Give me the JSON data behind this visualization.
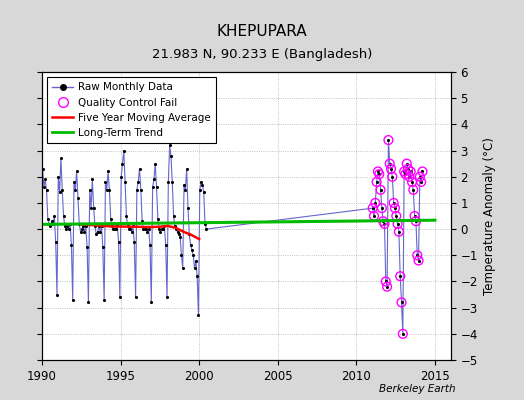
{
  "title": "KHEPUPARA",
  "subtitle": "21.983 N, 90.233 E (Bangladesh)",
  "ylabel": "Temperature Anomaly (°C)",
  "credit": "Berkeley Earth",
  "xlim": [
    1990,
    2016
  ],
  "ylim": [
    -5,
    6
  ],
  "yticks": [
    -5,
    -4,
    -3,
    -2,
    -1,
    0,
    1,
    2,
    3,
    4,
    5,
    6
  ],
  "xticks": [
    1990,
    1995,
    2000,
    2005,
    2010,
    2015
  ],
  "bg_color": "#d8d8d8",
  "plot_bg_color": "#ffffff",
  "raw_color": "#6666cc",
  "dot_color": "#000000",
  "qc_color": "#ff00ff",
  "ma_color": "#ff0000",
  "trend_color": "#00bb00",
  "raw_monthly": [
    [
      1990.042,
      2.3
    ],
    [
      1990.125,
      1.6
    ],
    [
      1990.208,
      1.9
    ],
    [
      1990.292,
      1.5
    ],
    [
      1990.375,
      0.4
    ],
    [
      1990.458,
      0.2
    ],
    [
      1990.542,
      0.1
    ],
    [
      1990.625,
      0.3
    ],
    [
      1990.708,
      0.2
    ],
    [
      1990.792,
      0.5
    ],
    [
      1990.875,
      -0.5
    ],
    [
      1990.958,
      -2.5
    ],
    [
      1991.042,
      2.0
    ],
    [
      1991.125,
      1.4
    ],
    [
      1991.208,
      2.7
    ],
    [
      1991.292,
      1.5
    ],
    [
      1991.375,
      0.5
    ],
    [
      1991.458,
      0.1
    ],
    [
      1991.542,
      0.0
    ],
    [
      1991.625,
      0.1
    ],
    [
      1991.708,
      0.0
    ],
    [
      1991.792,
      0.2
    ],
    [
      1991.875,
      -0.6
    ],
    [
      1991.958,
      -2.7
    ],
    [
      1992.042,
      1.8
    ],
    [
      1992.125,
      1.5
    ],
    [
      1992.208,
      2.2
    ],
    [
      1992.292,
      1.2
    ],
    [
      1992.375,
      0.2
    ],
    [
      1992.458,
      -0.1
    ],
    [
      1992.542,
      0.0
    ],
    [
      1992.625,
      0.1
    ],
    [
      1992.708,
      -0.1
    ],
    [
      1992.792,
      0.1
    ],
    [
      1992.875,
      -0.7
    ],
    [
      1992.958,
      -2.8
    ],
    [
      1993.042,
      1.5
    ],
    [
      1993.125,
      0.8
    ],
    [
      1993.208,
      1.9
    ],
    [
      1993.292,
      0.8
    ],
    [
      1993.375,
      0.1
    ],
    [
      1993.458,
      -0.2
    ],
    [
      1993.542,
      -0.1
    ],
    [
      1993.625,
      0.1
    ],
    [
      1993.708,
      -0.1
    ],
    [
      1993.792,
      0.1
    ],
    [
      1993.875,
      -0.7
    ],
    [
      1993.958,
      -2.7
    ],
    [
      1994.042,
      1.8
    ],
    [
      1994.125,
      1.5
    ],
    [
      1994.208,
      2.2
    ],
    [
      1994.292,
      1.5
    ],
    [
      1994.375,
      0.4
    ],
    [
      1994.458,
      0.1
    ],
    [
      1994.542,
      0.0
    ],
    [
      1994.625,
      0.0
    ],
    [
      1994.708,
      0.0
    ],
    [
      1994.792,
      0.2
    ],
    [
      1994.875,
      -0.5
    ],
    [
      1994.958,
      -2.6
    ],
    [
      1995.042,
      2.0
    ],
    [
      1995.125,
      2.5
    ],
    [
      1995.208,
      3.0
    ],
    [
      1995.292,
      1.8
    ],
    [
      1995.375,
      0.5
    ],
    [
      1995.458,
      0.1
    ],
    [
      1995.542,
      0.0
    ],
    [
      1995.625,
      0.0
    ],
    [
      1995.708,
      -0.1
    ],
    [
      1995.792,
      0.1
    ],
    [
      1995.875,
      -0.5
    ],
    [
      1995.958,
      -2.6
    ],
    [
      1996.042,
      1.5
    ],
    [
      1996.125,
      1.8
    ],
    [
      1996.208,
      2.3
    ],
    [
      1996.292,
      1.5
    ],
    [
      1996.375,
      0.3
    ],
    [
      1996.458,
      0.0
    ],
    [
      1996.542,
      0.0
    ],
    [
      1996.625,
      0.0
    ],
    [
      1996.708,
      -0.1
    ],
    [
      1996.792,
      0.0
    ],
    [
      1996.875,
      -0.6
    ],
    [
      1996.958,
      -2.8
    ],
    [
      1997.042,
      1.6
    ],
    [
      1997.125,
      1.9
    ],
    [
      1997.208,
      2.5
    ],
    [
      1997.292,
      1.6
    ],
    [
      1997.375,
      0.4
    ],
    [
      1997.458,
      0.0
    ],
    [
      1997.542,
      -0.1
    ],
    [
      1997.625,
      0.0
    ],
    [
      1997.708,
      0.0
    ],
    [
      1997.792,
      0.1
    ],
    [
      1997.875,
      -0.6
    ],
    [
      1997.958,
      -2.6
    ],
    [
      1998.042,
      1.8
    ],
    [
      1998.125,
      3.2
    ],
    [
      1998.208,
      2.8
    ],
    [
      1998.292,
      1.8
    ],
    [
      1998.375,
      0.5
    ],
    [
      1998.458,
      0.1
    ],
    [
      1998.542,
      0.0
    ],
    [
      1998.625,
      -0.1
    ],
    [
      1998.708,
      -0.2
    ],
    [
      1998.792,
      -0.3
    ],
    [
      1998.875,
      -1.0
    ],
    [
      1998.958,
      -1.5
    ],
    [
      1999.042,
      1.7
    ],
    [
      1999.125,
      1.5
    ],
    [
      1999.208,
      2.3
    ],
    [
      1999.292,
      0.8
    ],
    [
      1999.375,
      -0.2
    ],
    [
      1999.458,
      -0.6
    ],
    [
      1999.542,
      -0.8
    ],
    [
      1999.625,
      -1.0
    ],
    [
      1999.708,
      -1.5
    ],
    [
      1999.792,
      -1.2
    ],
    [
      1999.875,
      -1.8
    ],
    [
      1999.958,
      -3.3
    ],
    [
      2000.042,
      1.5
    ],
    [
      2000.125,
      1.8
    ],
    [
      2000.208,
      1.7
    ],
    [
      2000.292,
      1.4
    ],
    [
      2000.375,
      0.2
    ],
    [
      2000.458,
      0.0
    ],
    [
      2011.042,
      0.8
    ],
    [
      2011.125,
      0.5
    ],
    [
      2011.208,
      1.0
    ],
    [
      2011.292,
      1.8
    ],
    [
      2011.375,
      2.2
    ],
    [
      2011.458,
      2.1
    ],
    [
      2011.542,
      1.5
    ],
    [
      2011.625,
      0.8
    ],
    [
      2011.708,
      0.3
    ],
    [
      2011.792,
      0.2
    ],
    [
      2011.875,
      -2.0
    ],
    [
      2011.958,
      -2.2
    ],
    [
      2012.042,
      3.4
    ],
    [
      2012.125,
      2.5
    ],
    [
      2012.208,
      2.3
    ],
    [
      2012.292,
      2.0
    ],
    [
      2012.375,
      1.0
    ],
    [
      2012.458,
      0.8
    ],
    [
      2012.542,
      0.5
    ],
    [
      2012.625,
      0.2
    ],
    [
      2012.708,
      -0.1
    ],
    [
      2012.792,
      -1.8
    ],
    [
      2012.875,
      -2.8
    ],
    [
      2012.958,
      -4.0
    ],
    [
      2013.042,
      2.2
    ],
    [
      2013.125,
      2.1
    ],
    [
      2013.208,
      2.5
    ],
    [
      2013.292,
      2.3
    ],
    [
      2013.375,
      2.0
    ],
    [
      2013.458,
      2.2
    ],
    [
      2013.542,
      1.8
    ],
    [
      2013.625,
      1.5
    ],
    [
      2013.708,
      0.5
    ],
    [
      2013.792,
      0.3
    ],
    [
      2013.875,
      -1.0
    ],
    [
      2013.958,
      -1.2
    ],
    [
      2014.042,
      2.0
    ],
    [
      2014.125,
      1.8
    ],
    [
      2014.208,
      2.2
    ]
  ],
  "qc_fail": [
    [
      2011.042,
      0.8
    ],
    [
      2011.125,
      0.5
    ],
    [
      2011.208,
      1.0
    ],
    [
      2011.292,
      1.8
    ],
    [
      2011.375,
      2.2
    ],
    [
      2011.458,
      2.1
    ],
    [
      2011.542,
      1.5
    ],
    [
      2011.625,
      0.8
    ],
    [
      2011.708,
      0.3
    ],
    [
      2011.792,
      0.2
    ],
    [
      2011.875,
      -2.0
    ],
    [
      2011.958,
      -2.2
    ],
    [
      2012.042,
      3.4
    ],
    [
      2012.125,
      2.5
    ],
    [
      2012.208,
      2.3
    ],
    [
      2012.292,
      2.0
    ],
    [
      2012.375,
      1.0
    ],
    [
      2012.458,
      0.8
    ],
    [
      2012.542,
      0.5
    ],
    [
      2012.625,
      0.2
    ],
    [
      2012.708,
      -0.1
    ],
    [
      2012.792,
      -1.8
    ],
    [
      2012.875,
      -2.8
    ],
    [
      2012.958,
      -4.0
    ],
    [
      2013.042,
      2.2
    ],
    [
      2013.125,
      2.1
    ],
    [
      2013.208,
      2.5
    ],
    [
      2013.292,
      2.3
    ],
    [
      2013.375,
      2.0
    ],
    [
      2013.458,
      2.2
    ],
    [
      2013.542,
      1.8
    ],
    [
      2013.625,
      1.5
    ],
    [
      2013.708,
      0.5
    ],
    [
      2013.792,
      0.3
    ],
    [
      2013.875,
      -1.0
    ],
    [
      2013.958,
      -1.2
    ],
    [
      2014.042,
      2.0
    ],
    [
      2014.125,
      1.8
    ],
    [
      2014.208,
      2.2
    ]
  ],
  "moving_avg": [
    [
      1992.5,
      0.18
    ],
    [
      1993.0,
      0.16
    ],
    [
      1993.5,
      0.14
    ],
    [
      1994.0,
      0.12
    ],
    [
      1994.5,
      0.1
    ],
    [
      1995.0,
      0.1
    ],
    [
      1995.5,
      0.09
    ],
    [
      1996.0,
      0.09
    ],
    [
      1996.5,
      0.08
    ],
    [
      1997.0,
      0.08
    ],
    [
      1997.5,
      0.09
    ],
    [
      1998.0,
      0.12
    ],
    [
      1998.5,
      0.05
    ],
    [
      1999.0,
      -0.1
    ],
    [
      1999.5,
      -0.22
    ],
    [
      2000.0,
      -0.38
    ]
  ],
  "trend_x": [
    1990,
    2015
  ],
  "trend_y": [
    0.18,
    0.34
  ]
}
